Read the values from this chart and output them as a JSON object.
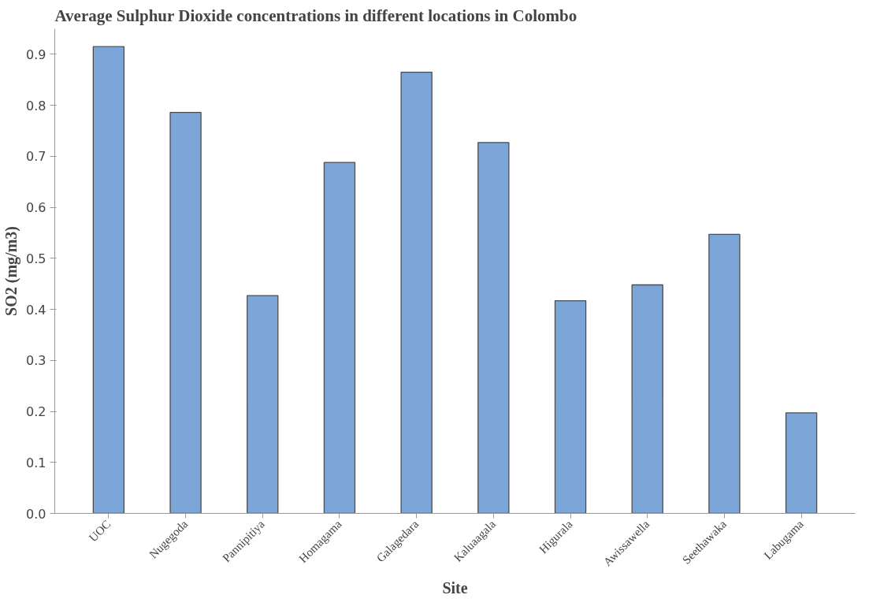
{
  "chart_data": {
    "type": "bar",
    "title": "Average Sulphur Dioxide concentrations in different locations in Colombo",
    "xlabel": "Site",
    "ylabel": "SO2 (mg/m3)",
    "categories": [
      "UOC",
      "Nugegoda",
      "Pannipitiya",
      "Homagama",
      "Galagedara",
      "Kaluaagala",
      "Higurala",
      "Awissawella",
      "Seethawaka",
      "Labugama"
    ],
    "values": [
      0.915,
      0.786,
      0.427,
      0.688,
      0.865,
      0.727,
      0.417,
      0.448,
      0.547,
      0.197
    ],
    "color": "#7da6d8",
    "ylim": [
      0,
      0.95
    ],
    "yticks": [
      {
        "value": 0,
        "label": "0.0"
      },
      0.1,
      0.2,
      0.3,
      0.4,
      0.5,
      0.6,
      0.7,
      0.8,
      0.9
    ],
    "grid": false
  }
}
